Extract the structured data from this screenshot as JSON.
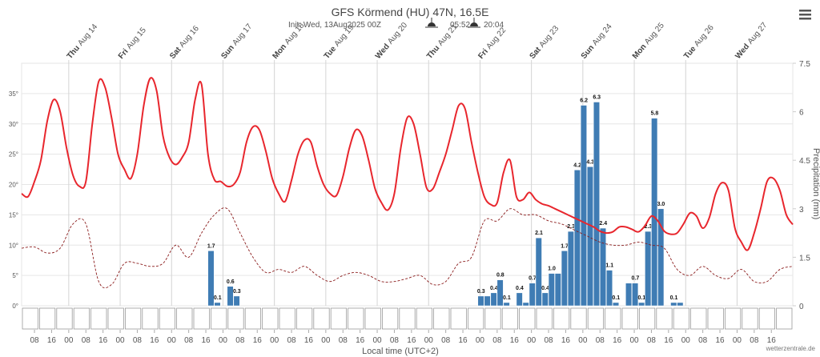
{
  "chart_data": {
    "type": "line",
    "title": "GFS Körmend (HU) 47N, 16.5E",
    "subtitle": {
      "init": "Init: Wed, 13Aug2025 00Z",
      "sunrise": "05:52",
      "sunset": "20:04"
    },
    "xlabel": "Local time (UTC+2)",
    "y2label": "Precipitation (mm)",
    "credit": "wetterzentrale.de",
    "xlim": [
      "2025-08-13T02:00",
      "2025-08-28T02:00"
    ],
    "ylim": [
      0,
      40
    ],
    "y2lim": [
      0,
      7.5
    ],
    "yticks": [
      {
        "value": 0,
        "label": "0°"
      },
      {
        "value": 5,
        "label": "5°"
      },
      {
        "value": 10,
        "label": "10°"
      },
      {
        "value": 15,
        "label": "15°"
      },
      {
        "value": 20,
        "label": "20°"
      },
      {
        "value": 25,
        "label": "25°"
      },
      {
        "value": 30,
        "label": "30°"
      },
      {
        "value": 35,
        "label": "35°"
      }
    ],
    "y2ticks": [
      0,
      1.5,
      3,
      4.5,
      6,
      7.5
    ],
    "grid": true,
    "day_ticks": [
      {
        "value": "2025-08-14T00:00",
        "day": "Thu",
        "date": "Aug 14"
      },
      {
        "value": "2025-08-15T00:00",
        "day": "Fri",
        "date": "Aug 15"
      },
      {
        "value": "2025-08-16T00:00",
        "day": "Sat",
        "date": "Aug 16"
      },
      {
        "value": "2025-08-17T00:00",
        "day": "Sun",
        "date": "Aug 17"
      },
      {
        "value": "2025-08-18T00:00",
        "day": "Mon",
        "date": "Aug 18"
      },
      {
        "value": "2025-08-19T00:00",
        "day": "Tue",
        "date": "Aug 19"
      },
      {
        "value": "2025-08-20T00:00",
        "day": "Wed",
        "date": "Aug 20"
      },
      {
        "value": "2025-08-21T00:00",
        "day": "Thu",
        "date": "Aug 21"
      },
      {
        "value": "2025-08-22T00:00",
        "day": "Fri",
        "date": "Aug 22"
      },
      {
        "value": "2025-08-23T00:00",
        "day": "Sat",
        "date": "Aug 23"
      },
      {
        "value": "2025-08-24T00:00",
        "day": "Sun",
        "date": "Aug 24"
      },
      {
        "value": "2025-08-25T00:00",
        "day": "Mon",
        "date": "Aug 25"
      },
      {
        "value": "2025-08-26T00:00",
        "day": "Tue",
        "date": "Aug 26"
      },
      {
        "value": "2025-08-27T00:00",
        "day": "Wed",
        "date": "Aug 27"
      }
    ],
    "xticks": [
      {
        "value": "2025-08-13T08:00",
        "label": "08"
      },
      {
        "value": "2025-08-13T16:00",
        "label": "16"
      },
      {
        "value": "2025-08-14T00:00",
        "label": "00"
      },
      {
        "value": "2025-08-14T08:00",
        "label": "08"
      },
      {
        "value": "2025-08-14T16:00",
        "label": "16"
      },
      {
        "value": "2025-08-15T00:00",
        "label": "00"
      },
      {
        "value": "2025-08-15T08:00",
        "label": "08"
      },
      {
        "value": "2025-08-15T16:00",
        "label": "16"
      },
      {
        "value": "2025-08-16T00:00",
        "label": "00"
      },
      {
        "value": "2025-08-16T08:00",
        "label": "08"
      },
      {
        "value": "2025-08-16T16:00",
        "label": "16"
      },
      {
        "value": "2025-08-17T00:00",
        "label": "00"
      },
      {
        "value": "2025-08-17T08:00",
        "label": "08"
      },
      {
        "value": "2025-08-17T16:00",
        "label": "16"
      },
      {
        "value": "2025-08-18T00:00",
        "label": "00"
      },
      {
        "value": "2025-08-18T08:00",
        "label": "08"
      },
      {
        "value": "2025-08-18T16:00",
        "label": "16"
      },
      {
        "value": "2025-08-19T00:00",
        "label": "00"
      },
      {
        "value": "2025-08-19T08:00",
        "label": "08"
      },
      {
        "value": "2025-08-19T16:00",
        "label": "16"
      },
      {
        "value": "2025-08-20T00:00",
        "label": "00"
      },
      {
        "value": "2025-08-20T08:00",
        "label": "08"
      },
      {
        "value": "2025-08-20T16:00",
        "label": "16"
      },
      {
        "value": "2025-08-21T00:00",
        "label": "00"
      },
      {
        "value": "2025-08-21T08:00",
        "label": "08"
      },
      {
        "value": "2025-08-21T16:00",
        "label": "16"
      },
      {
        "value": "2025-08-22T00:00",
        "label": "00"
      },
      {
        "value": "2025-08-22T08:00",
        "label": "08"
      },
      {
        "value": "2025-08-22T16:00",
        "label": "16"
      },
      {
        "value": "2025-08-23T00:00",
        "label": "00"
      },
      {
        "value": "2025-08-23T08:00",
        "label": "08"
      },
      {
        "value": "2025-08-23T16:00",
        "label": "16"
      },
      {
        "value": "2025-08-24T00:00",
        "label": "00"
      },
      {
        "value": "2025-08-24T08:00",
        "label": "08"
      },
      {
        "value": "2025-08-24T16:00",
        "label": "16"
      },
      {
        "value": "2025-08-25T00:00",
        "label": "00"
      },
      {
        "value": "2025-08-25T08:00",
        "label": "08"
      },
      {
        "value": "2025-08-25T16:00",
        "label": "16"
      },
      {
        "value": "2025-08-26T00:00",
        "label": "00"
      },
      {
        "value": "2025-08-26T08:00",
        "label": "08"
      },
      {
        "value": "2025-08-26T16:00",
        "label": "16"
      },
      {
        "value": "2025-08-27T00:00",
        "label": "00"
      },
      {
        "value": "2025-08-27T08:00",
        "label": "08"
      },
      {
        "value": "2025-08-27T16:00",
        "label": "16"
      }
    ],
    "series": [
      {
        "type": "bar",
        "axis": "y2",
        "color": "#3f7cb4",
        "x": [
          "2025-08-16T17:00",
          "2025-08-16T20:00",
          "2025-08-17T02:00",
          "2025-08-17T05:00",
          "2025-08-21T23:00",
          "2025-08-22T02:00",
          "2025-08-22T05:00",
          "2025-08-22T08:00",
          "2025-08-22T11:00",
          "2025-08-22T17:00",
          "2025-08-22T20:00",
          "2025-08-22T23:00",
          "2025-08-23T02:00",
          "2025-08-23T05:00",
          "2025-08-23T08:00",
          "2025-08-23T11:00",
          "2025-08-23T14:00",
          "2025-08-23T17:00",
          "2025-08-23T20:00",
          "2025-08-23T23:00",
          "2025-08-24T02:00",
          "2025-08-24T05:00",
          "2025-08-24T08:00",
          "2025-08-24T11:00",
          "2025-08-24T14:00",
          "2025-08-24T20:00",
          "2025-08-24T23:00",
          "2025-08-25T02:00",
          "2025-08-25T05:00",
          "2025-08-25T08:00",
          "2025-08-25T11:00",
          "2025-08-25T17:00",
          "2025-08-25T20:00"
        ],
        "values": [
          1.7,
          0.1,
          0.6,
          0.3,
          0.3,
          0.3,
          0.4,
          0.8,
          0.1,
          0.4,
          0.1,
          0.7,
          2.1,
          0.4,
          1,
          1,
          1.7,
          2.3,
          4.2,
          6.2,
          4.3,
          6.3,
          2.4,
          1.1,
          0.1,
          0.7,
          0.7,
          0.1,
          2.3,
          5.8,
          3,
          0.1,
          0.1
        ],
        "value_labels": [
          "1.7",
          "0.1",
          "0.6",
          "0.3",
          "0.3",
          null,
          "0.4",
          "0.8",
          "0.1",
          "0.4",
          null,
          "0.7",
          "2.1",
          "0.4",
          "1.0",
          null,
          "1.7",
          "2.3",
          "4.2",
          "6.2",
          "4.3",
          "6.3",
          "2.4",
          "1.1",
          "0.1",
          null,
          "0.7",
          "0.1",
          "2.3",
          "5.8",
          "3.0",
          "0.1",
          null
        ]
      },
      {
        "type": "line",
        "color": "#8b1c1c",
        "dashed": true,
        "x": [
          "2025-08-13T02:00",
          "2025-08-13T08:00",
          "2025-08-13T14:00",
          "2025-08-13T20:00",
          "2025-08-14T02:00",
          "2025-08-14T08:00",
          "2025-08-14T14:00",
          "2025-08-14T20:00",
          "2025-08-15T02:00",
          "2025-08-15T08:00",
          "2025-08-15T14:00",
          "2025-08-15T20:00",
          "2025-08-16T02:00",
          "2025-08-16T08:00",
          "2025-08-16T14:00",
          "2025-08-16T20:00",
          "2025-08-17T02:00",
          "2025-08-17T08:00",
          "2025-08-17T14:00",
          "2025-08-17T20:00",
          "2025-08-18T02:00",
          "2025-08-18T08:00",
          "2025-08-18T14:00",
          "2025-08-18T20:00",
          "2025-08-19T02:00",
          "2025-08-19T08:00",
          "2025-08-19T14:00",
          "2025-08-19T20:00",
          "2025-08-20T02:00",
          "2025-08-20T08:00",
          "2025-08-20T14:00",
          "2025-08-20T20:00",
          "2025-08-21T02:00",
          "2025-08-21T08:00",
          "2025-08-21T14:00",
          "2025-08-21T20:00",
          "2025-08-22T02:00",
          "2025-08-22T08:00",
          "2025-08-22T14:00",
          "2025-08-22T20:00",
          "2025-08-23T02:00",
          "2025-08-23T08:00",
          "2025-08-23T14:00",
          "2025-08-23T20:00",
          "2025-08-24T02:00",
          "2025-08-24T08:00",
          "2025-08-24T14:00",
          "2025-08-24T20:00",
          "2025-08-25T02:00",
          "2025-08-25T08:00",
          "2025-08-25T14:00",
          "2025-08-25T20:00",
          "2025-08-26T02:00",
          "2025-08-26T08:00",
          "2025-08-26T14:00",
          "2025-08-26T20:00",
          "2025-08-27T02:00",
          "2025-08-27T08:00",
          "2025-08-27T14:00",
          "2025-08-27T20:00",
          "2025-08-28T02:00"
        ],
        "values": [
          9.5,
          9.7,
          8.7,
          9.5,
          13.5,
          13.5,
          4,
          3.5,
          7,
          7,
          6.5,
          7,
          10,
          8,
          12,
          15,
          16,
          12,
          8,
          5.5,
          6,
          5.5,
          6.5,
          5,
          4,
          5,
          5.5,
          5,
          4,
          4,
          4.5,
          5,
          3.5,
          4,
          7,
          8,
          14,
          14,
          16,
          15,
          15,
          14,
          13.5,
          12.5,
          11.5,
          10.5,
          10,
          10,
          10.5,
          10,
          9.5,
          6,
          5,
          6.5,
          5,
          4.5,
          6,
          4,
          4,
          6,
          6.5
        ]
      },
      {
        "type": "line",
        "color": "#e8262d",
        "x": [
          "2025-08-13T02:00",
          "2025-08-13T05:00",
          "2025-08-13T08:00",
          "2025-08-13T11:00",
          "2025-08-13T14:00",
          "2025-08-13T17:00",
          "2025-08-13T20:00",
          "2025-08-13T23:00",
          "2025-08-14T02:00",
          "2025-08-14T05:00",
          "2025-08-14T08:00",
          "2025-08-14T11:00",
          "2025-08-14T14:00",
          "2025-08-14T17:00",
          "2025-08-14T20:00",
          "2025-08-14T23:00",
          "2025-08-15T02:00",
          "2025-08-15T05:00",
          "2025-08-15T08:00",
          "2025-08-15T11:00",
          "2025-08-15T14:00",
          "2025-08-15T17:00",
          "2025-08-15T20:00",
          "2025-08-15T23:00",
          "2025-08-16T02:00",
          "2025-08-16T05:00",
          "2025-08-16T08:00",
          "2025-08-16T11:00",
          "2025-08-16T14:00",
          "2025-08-16T17:00",
          "2025-08-16T20:00",
          "2025-08-16T23:00",
          "2025-08-17T02:00",
          "2025-08-17T05:00",
          "2025-08-17T08:00",
          "2025-08-17T11:00",
          "2025-08-17T14:00",
          "2025-08-17T17:00",
          "2025-08-17T20:00",
          "2025-08-17T23:00",
          "2025-08-18T02:00",
          "2025-08-18T05:00",
          "2025-08-18T08:00",
          "2025-08-18T11:00",
          "2025-08-18T14:00",
          "2025-08-18T17:00",
          "2025-08-18T20:00",
          "2025-08-18T23:00",
          "2025-08-19T02:00",
          "2025-08-19T05:00",
          "2025-08-19T08:00",
          "2025-08-19T11:00",
          "2025-08-19T14:00",
          "2025-08-19T17:00",
          "2025-08-19T20:00",
          "2025-08-19T23:00",
          "2025-08-20T02:00",
          "2025-08-20T05:00",
          "2025-08-20T08:00",
          "2025-08-20T11:00",
          "2025-08-20T14:00",
          "2025-08-20T17:00",
          "2025-08-20T20:00",
          "2025-08-20T23:00",
          "2025-08-21T02:00",
          "2025-08-21T05:00",
          "2025-08-21T08:00",
          "2025-08-21T11:00",
          "2025-08-21T14:00",
          "2025-08-21T17:00",
          "2025-08-21T20:00",
          "2025-08-21T23:00",
          "2025-08-22T02:00",
          "2025-08-22T05:00",
          "2025-08-22T08:00",
          "2025-08-22T11:00",
          "2025-08-22T14:00",
          "2025-08-22T17:00",
          "2025-08-22T20:00",
          "2025-08-22T23:00",
          "2025-08-23T02:00",
          "2025-08-23T05:00",
          "2025-08-23T08:00",
          "2025-08-23T11:00",
          "2025-08-23T14:00",
          "2025-08-23T17:00",
          "2025-08-23T20:00",
          "2025-08-23T23:00",
          "2025-08-24T02:00",
          "2025-08-24T05:00",
          "2025-08-24T08:00",
          "2025-08-24T11:00",
          "2025-08-24T14:00",
          "2025-08-24T17:00",
          "2025-08-24T20:00",
          "2025-08-24T23:00",
          "2025-08-25T02:00",
          "2025-08-25T05:00",
          "2025-08-25T08:00",
          "2025-08-25T11:00",
          "2025-08-25T14:00",
          "2025-08-25T17:00",
          "2025-08-25T20:00",
          "2025-08-25T23:00",
          "2025-08-26T02:00",
          "2025-08-26T05:00",
          "2025-08-26T08:00",
          "2025-08-26T11:00",
          "2025-08-26T14:00",
          "2025-08-26T17:00",
          "2025-08-26T20:00",
          "2025-08-26T23:00",
          "2025-08-27T02:00",
          "2025-08-27T05:00",
          "2025-08-27T08:00",
          "2025-08-27T11:00",
          "2025-08-27T14:00",
          "2025-08-27T17:00",
          "2025-08-27T20:00",
          "2025-08-27T23:00",
          "2025-08-28T02:00"
        ],
        "values": [
          18.5,
          18,
          20.5,
          24,
          30.5,
          34,
          32,
          26,
          21.5,
          19.7,
          20.5,
          30,
          37,
          36,
          31,
          25,
          22.5,
          21,
          25,
          33,
          37.5,
          35.5,
          28,
          24.5,
          23.3,
          24.5,
          27,
          34,
          36.5,
          25,
          20.8,
          20.5,
          19.7,
          20,
          22,
          27,
          29.5,
          29,
          25.5,
          21,
          18.5,
          17.2,
          20.7,
          25,
          27.3,
          27,
          23,
          20,
          18.5,
          18.2,
          21.3,
          26,
          29,
          28,
          24,
          19.3,
          17,
          15.8,
          18.5,
          26,
          31,
          30,
          25,
          19.5,
          19.3,
          22,
          25,
          29,
          33,
          32.5,
          27,
          22,
          18,
          16.7,
          17,
          22,
          24,
          18,
          17.5,
          18.7,
          17.5,
          16.8,
          16.5,
          16,
          15.5,
          15,
          14.5,
          14,
          13.5,
          13,
          12.3,
          12,
          12.2,
          13,
          13,
          12.6,
          12.2,
          13.2,
          14.8,
          14,
          12.3,
          11.8,
          12,
          13.5,
          15.3,
          14.8,
          12.8,
          14.5,
          18.5,
          20.3,
          19,
          12.8,
          10.5,
          9.2,
          12,
          16,
          20.5,
          21,
          19,
          15,
          13.4
        ]
      }
    ]
  }
}
